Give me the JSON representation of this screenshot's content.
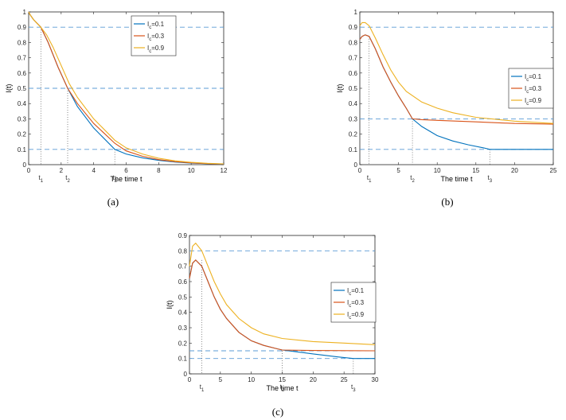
{
  "chart_data": [
    {
      "type": "line",
      "caption": "(a)",
      "xlabel": "The time t",
      "ylabel": "I(t)",
      "xlim": [
        0,
        12
      ],
      "ylim": [
        0,
        1
      ],
      "xticks": [
        0,
        2,
        4,
        6,
        8,
        10,
        12
      ],
      "yticks": [
        0,
        0.1,
        0.2,
        0.3,
        0.4,
        0.5,
        0.6,
        0.7,
        0.8,
        0.9,
        1
      ],
      "legend": {
        "placement": "top-right",
        "entries": [
          {
            "main": "I",
            "sub": "c",
            "tail": "=0.1"
          },
          {
            "main": "I",
            "sub": "c",
            "tail": "=0.3"
          },
          {
            "main": "I",
            "sub": "c",
            "tail": "=0.9"
          }
        ]
      },
      "hlines": [
        0.9,
        0.5,
        0.1
      ],
      "markers": [
        {
          "main": "t",
          "sub": "1",
          "x": 0.75,
          "y": 0.9
        },
        {
          "main": "t",
          "sub": "2",
          "x": 2.4,
          "y": 0.5
        },
        {
          "main": "t",
          "sub": "3",
          "x": 5.3,
          "y": 0.1
        }
      ],
      "series": [
        {
          "name": "Ic=0.1",
          "color": "#0072BD",
          "x": [
            0,
            0.1,
            0.3,
            0.75,
            1.2,
            1.8,
            2.4,
            3,
            4,
            5.3,
            6,
            7,
            8,
            9,
            10,
            11,
            12
          ],
          "y": [
            1,
            0.98,
            0.95,
            0.9,
            0.8,
            0.64,
            0.5,
            0.38,
            0.24,
            0.1,
            0.07,
            0.045,
            0.028,
            0.017,
            0.01,
            0.006,
            0.003
          ]
        },
        {
          "name": "Ic=0.3",
          "color": "#D95319",
          "x": [
            0,
            0.1,
            0.3,
            0.75,
            1.2,
            1.8,
            2.4,
            3,
            4,
            5.3,
            6,
            7,
            8,
            9,
            10,
            11,
            12
          ],
          "y": [
            1,
            0.98,
            0.95,
            0.9,
            0.8,
            0.64,
            0.5,
            0.4,
            0.27,
            0.14,
            0.09,
            0.055,
            0.033,
            0.02,
            0.012,
            0.007,
            0.004
          ]
        },
        {
          "name": "Ic=0.9",
          "color": "#EDB120",
          "x": [
            0,
            0.1,
            0.3,
            0.75,
            1.1,
            1.5,
            2,
            2.5,
            3,
            4,
            5.3,
            6,
            7,
            8,
            9,
            10,
            11,
            12
          ],
          "y": [
            1,
            0.98,
            0.95,
            0.9,
            0.85,
            0.77,
            0.65,
            0.53,
            0.44,
            0.3,
            0.16,
            0.11,
            0.07,
            0.042,
            0.025,
            0.015,
            0.009,
            0.005
          ]
        }
      ]
    },
    {
      "type": "line",
      "caption": "(b)",
      "xlabel": "The time t",
      "ylabel": "I(t)",
      "xlim": [
        0,
        25
      ],
      "ylim": [
        0,
        1
      ],
      "xticks": [
        0,
        5,
        10,
        15,
        20,
        25
      ],
      "yticks": [
        0,
        0.1,
        0.2,
        0.3,
        0.4,
        0.5,
        0.6,
        0.7,
        0.8,
        0.9,
        1
      ],
      "legend": {
        "placement": "middle-right",
        "entries": [
          {
            "main": "I",
            "sub": "c",
            "tail": "=0.1"
          },
          {
            "main": "I",
            "sub": "c",
            "tail": "=0.3"
          },
          {
            "main": "I",
            "sub": "c",
            "tail": "=0.9"
          }
        ]
      },
      "hlines": [
        0.9,
        0.3,
        0.1
      ],
      "markers": [
        {
          "main": "t",
          "sub": "1",
          "x": 1.2,
          "y": 0.84
        },
        {
          "main": "t",
          "sub": "2",
          "x": 6.8,
          "y": 0.3
        },
        {
          "main": "t",
          "sub": "3",
          "x": 16.8,
          "y": 0.1
        }
      ],
      "series": [
        {
          "name": "Ic=0.1",
          "color": "#0072BD",
          "x": [
            0,
            0.3,
            0.7,
            1.2,
            2,
            3,
            4,
            5,
            6,
            6.8,
            8,
            10,
            12,
            14,
            16,
            16.8,
            18,
            20,
            25
          ],
          "y": [
            0.82,
            0.84,
            0.85,
            0.84,
            0.76,
            0.64,
            0.54,
            0.45,
            0.37,
            0.3,
            0.25,
            0.19,
            0.155,
            0.13,
            0.11,
            0.1,
            0.1,
            0.1,
            0.1
          ]
        },
        {
          "name": "Ic=0.3",
          "color": "#D95319",
          "x": [
            0,
            0.3,
            0.7,
            1.2,
            2,
            3,
            4,
            5,
            6,
            6.8,
            8,
            10,
            15,
            20,
            25
          ],
          "y": [
            0.82,
            0.84,
            0.85,
            0.84,
            0.76,
            0.64,
            0.54,
            0.45,
            0.37,
            0.3,
            0.295,
            0.29,
            0.28,
            0.27,
            0.265
          ]
        },
        {
          "name": "Ic=0.9",
          "color": "#EDB120",
          "x": [
            0,
            0.3,
            0.7,
            1.2,
            2,
            3,
            4,
            5,
            6,
            8,
            10,
            12,
            15,
            20,
            25
          ],
          "y": [
            0.91,
            0.93,
            0.93,
            0.91,
            0.83,
            0.72,
            0.62,
            0.54,
            0.48,
            0.41,
            0.37,
            0.34,
            0.31,
            0.285,
            0.27
          ]
        }
      ]
    },
    {
      "type": "line",
      "caption": "(c)",
      "xlabel": "The time t",
      "ylabel": "I(t)",
      "xlim": [
        0,
        30
      ],
      "ylim": [
        0,
        0.9
      ],
      "xticks": [
        0,
        5,
        10,
        15,
        20,
        25,
        30
      ],
      "yticks": [
        0,
        0.1,
        0.2,
        0.3,
        0.4,
        0.5,
        0.6,
        0.7,
        0.8,
        0.9
      ],
      "legend": {
        "placement": "middle-right",
        "entries": [
          {
            "main": "I",
            "sub": "c",
            "tail": "=0.1"
          },
          {
            "main": "I",
            "sub": "c",
            "tail": "=0.3"
          },
          {
            "main": "I",
            "sub": "c",
            "tail": "=0.9"
          }
        ]
      },
      "hlines": [
        0.8,
        0.15,
        0.1
      ],
      "markers": [
        {
          "main": "t",
          "sub": "1",
          "x": 2,
          "y": 0.74
        },
        {
          "main": "t",
          "sub": "2",
          "x": 15,
          "y": 0.15
        },
        {
          "main": "t",
          "sub": "3",
          "x": 26.5,
          "y": 0.1
        }
      ],
      "series": [
        {
          "name": "Ic=0.1",
          "color": "#0072BD",
          "x": [
            0,
            0.5,
            1,
            2,
            3,
            4,
            5,
            6,
            8,
            10,
            12,
            14,
            15,
            18,
            20,
            22,
            24,
            26.5,
            28,
            30
          ],
          "y": [
            0.62,
            0.72,
            0.74,
            0.7,
            0.6,
            0.5,
            0.42,
            0.36,
            0.27,
            0.215,
            0.185,
            0.165,
            0.155,
            0.14,
            0.13,
            0.12,
            0.11,
            0.1,
            0.1,
            0.1
          ]
        },
        {
          "name": "Ic=0.3",
          "color": "#D95319",
          "x": [
            0,
            0.5,
            1,
            2,
            3,
            4,
            5,
            6,
            8,
            10,
            12,
            14,
            15,
            20,
            25,
            30
          ],
          "y": [
            0.62,
            0.72,
            0.74,
            0.7,
            0.6,
            0.5,
            0.42,
            0.36,
            0.27,
            0.215,
            0.185,
            0.165,
            0.155,
            0.152,
            0.151,
            0.15
          ]
        },
        {
          "name": "Ic=0.9",
          "color": "#EDB120",
          "x": [
            0,
            0.5,
            1,
            2,
            3,
            4,
            5,
            6,
            8,
            10,
            12,
            15,
            20,
            25,
            30
          ],
          "y": [
            0.7,
            0.83,
            0.85,
            0.8,
            0.7,
            0.6,
            0.52,
            0.45,
            0.36,
            0.3,
            0.26,
            0.23,
            0.21,
            0.2,
            0.19
          ]
        }
      ]
    }
  ]
}
